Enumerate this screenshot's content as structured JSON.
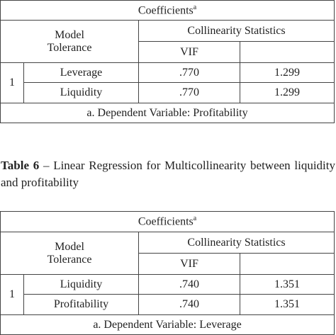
{
  "tables": [
    {
      "title": "Coefficients",
      "title_sup": "a",
      "header": {
        "model": "Model",
        "tolerance": "Tolerance",
        "group": "Collinearity Statistics",
        "vif": "VIF"
      },
      "model_number": "1",
      "rows": [
        [
          "Leverage",
          ".770",
          "1.299"
        ],
        [
          "Liquidity",
          ".770",
          "1.299"
        ]
      ],
      "footnote": "a. Dependent Variable: Profitability"
    },
    {
      "title": "Coefficients",
      "title_sup": "a",
      "header": {
        "model": "Model",
        "tolerance": "Tolerance",
        "group": "Collinearity Statistics",
        "vif": "VIF"
      },
      "model_number": "1",
      "rows": [
        [
          "Liquidity",
          ".740",
          "1.351"
        ],
        [
          "Profitability",
          ".740",
          "1.351"
        ]
      ],
      "footnote": "a. Dependent Variable: Leverage"
    }
  ],
  "caption": {
    "label": "Table 6",
    "text": "– Linear Regression for Multicollinearity between liquidity and profitability"
  }
}
